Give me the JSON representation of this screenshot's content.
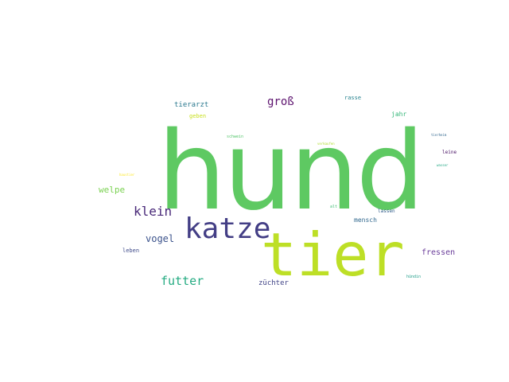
{
  "words": [
    {
      "text": "hund",
      "color": "#5ec962"
    },
    {
      "text": "tier",
      "color": "#bddf26"
    },
    {
      "text": "katze",
      "color": "#433e85"
    },
    {
      "text": "klein",
      "color": "#482878"
    },
    {
      "text": "futter",
      "color": "#25ab82"
    },
    {
      "text": "groß",
      "color": "#5c126e"
    },
    {
      "text": "vogel",
      "color": "#3b528b"
    },
    {
      "text": "welpe",
      "color": "#7ad151"
    },
    {
      "text": "tierarzt",
      "color": "#2a788e"
    },
    {
      "text": "fressen",
      "color": "#6a3d9a"
    },
    {
      "text": "züchter",
      "color": "#414487"
    },
    {
      "text": "mensch",
      "color": "#31688e"
    },
    {
      "text": "jahr",
      "color": "#35b779"
    },
    {
      "text": "rasse",
      "color": "#26828e"
    },
    {
      "text": "geben",
      "color": "#c8e020"
    },
    {
      "text": "leben",
      "color": "#3e4a89"
    },
    {
      "text": "lassen",
      "color": "#355f8d"
    },
    {
      "text": "leine",
      "color": "#471164"
    },
    {
      "text": "schwein",
      "color": "#52c569"
    },
    {
      "text": "hündin",
      "color": "#1f9e89"
    },
    {
      "text": "verkaufen",
      "color": "#b0dd2f"
    },
    {
      "text": "alt",
      "color": "#3dbc74"
    },
    {
      "text": "tierheim",
      "color": "#31678e"
    },
    {
      "text": "wasser",
      "color": "#22a884"
    },
    {
      "text": "haustier",
      "color": "#fde725"
    }
  ]
}
